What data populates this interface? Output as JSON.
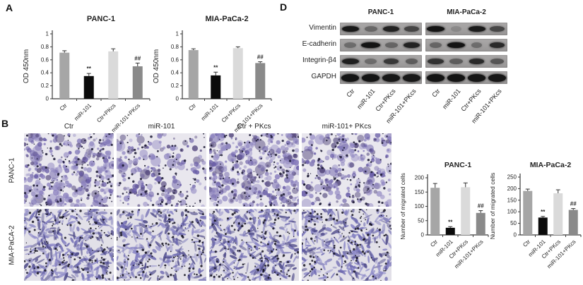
{
  "figure": {
    "colors": {
      "bar_series": [
        "#a6a6a6",
        "#0b0b0b",
        "#dadada",
        "#8a8a8a"
      ],
      "axis": "#3a3a3a",
      "text": "#222222",
      "blot_background": "#a3a1a1",
      "micro_bg_row1": "#e9e7ee",
      "micro_bg_row2": "#e2e0e8",
      "micro_cell_purple": "#6b5fa8",
      "micro_cell_blue": "#6e6ab2"
    },
    "panels": {
      "A": {
        "letter": "A"
      },
      "D": {
        "letter": "D",
        "group_titles": [
          "PANC-1",
          "MIA-PaCa-2"
        ],
        "lane_labels": [
          "Ctr",
          "miR-101",
          "Ctr+PKcs",
          "miR-101+PKcs"
        ],
        "targets": [
          {
            "name": "Vimentin",
            "panc1_intensity": [
              0.92,
              0.38,
              0.85,
              0.62
            ],
            "panc1_width": [
              1.0,
              0.75,
              0.95,
              0.85
            ],
            "mia_intensity": [
              0.95,
              0.15,
              0.9,
              0.6
            ],
            "mia_width": [
              1.05,
              0.6,
              1.0,
              0.85
            ]
          },
          {
            "name": "E-cadherin",
            "panc1_intensity": [
              0.35,
              0.95,
              0.4,
              0.85
            ],
            "panc1_width": [
              0.7,
              1.1,
              0.75,
              0.95
            ],
            "mia_intensity": [
              0.4,
              0.95,
              0.35,
              0.8
            ],
            "mia_width": [
              0.7,
              1.05,
              0.65,
              0.9
            ]
          },
          {
            "name": "Integrin-β4",
            "panc1_intensity": [
              0.88,
              0.35,
              0.7,
              0.45
            ],
            "panc1_width": [
              1.0,
              0.7,
              0.9,
              0.7
            ],
            "mia_intensity": [
              0.75,
              0.45,
              0.8,
              0.5
            ],
            "mia_width": [
              0.95,
              0.8,
              0.9,
              0.8
            ]
          },
          {
            "name": "GAPDH",
            "panc1_intensity": [
              0.95,
              0.95,
              0.92,
              0.92
            ],
            "panc1_width": [
              1.05,
              1.05,
              1.05,
              1.05
            ],
            "mia_intensity": [
              0.95,
              0.95,
              0.93,
              0.93
            ],
            "mia_width": [
              1.05,
              1.05,
              1.05,
              1.05
            ]
          }
        ]
      },
      "B": {
        "letter": "B",
        "col_headers": [
          "Ctr",
          "miR-101",
          "Ctr + PKcs",
          "miR-101+ PKcs"
        ],
        "row_labels": [
          "PANC-1",
          "MIA-PaCA-2"
        ],
        "tile_densities": [
          [
            1.0,
            0.55,
            1.05,
            0.75
          ],
          [
            1.0,
            0.85,
            1.0,
            0.9
          ]
        ]
      }
    }
  },
  "chart_data": [
    {
      "id": "od-panc1",
      "panel": "A",
      "type": "bar",
      "title": "PANC-1",
      "xlabel": "",
      "ylabel": "OD 450nm",
      "categories": [
        "Ctr",
        "miR-101",
        "Ctr+PKcs",
        "miR-101+PKcs"
      ],
      "values": [
        0.71,
        0.35,
        0.73,
        0.5
      ],
      "errors": [
        0.03,
        0.04,
        0.04,
        0.05
      ],
      "sig": [
        "",
        "**",
        "",
        "##"
      ],
      "ylim": [
        0,
        1
      ],
      "yticks": [
        0,
        0.2,
        0.4,
        0.6,
        0.8,
        1
      ],
      "grid": false,
      "legend": "none"
    },
    {
      "id": "od-mia",
      "panel": "A",
      "type": "bar",
      "title": "MIA-PaCa-2",
      "xlabel": "",
      "ylabel": "OD 450nm",
      "categories": [
        "Ctr",
        "miR-101",
        "Ctr+PKcs",
        "miR-101+PKcs"
      ],
      "values": [
        0.75,
        0.36,
        0.78,
        0.55
      ],
      "errors": [
        0.02,
        0.05,
        0.02,
        0.02
      ],
      "sig": [
        "",
        "**",
        "",
        "##"
      ],
      "ylim": [
        0,
        1
      ],
      "yticks": [
        0,
        0.2,
        0.4,
        0.6,
        0.8,
        1
      ],
      "grid": false,
      "legend": "none"
    },
    {
      "id": "mig-panc1",
      "panel": "B",
      "type": "bar",
      "title": "PANC-1",
      "xlabel": "",
      "ylabel": "Number of migrated cells",
      "categories": [
        "Ctr",
        "miR-101",
        "Ctr+PKcs",
        "miR-101+PKcs"
      ],
      "values": [
        165,
        25,
        167,
        77
      ],
      "errors": [
        15,
        4,
        15,
        8
      ],
      "sig": [
        "",
        "**",
        "",
        "##"
      ],
      "ylim": [
        0,
        200
      ],
      "yticks": [
        0,
        50,
        100,
        150,
        200
      ],
      "grid": false,
      "legend": "none"
    },
    {
      "id": "mig-mia",
      "panel": "B",
      "type": "bar",
      "title": "MIA-PaCa-2",
      "xlabel": "",
      "ylabel": "Number of migrated cells",
      "categories": [
        "Ctr",
        "miR-101",
        "Ctr+PKcs",
        "miR-101+PKcs"
      ],
      "values": [
        190,
        75,
        180,
        108
      ],
      "errors": [
        8,
        5,
        15,
        6
      ],
      "sig": [
        "",
        "**",
        "",
        "##"
      ],
      "ylim": [
        0,
        250
      ],
      "yticks": [
        0,
        50,
        100,
        150,
        200,
        250
      ],
      "grid": false,
      "legend": "none"
    }
  ]
}
